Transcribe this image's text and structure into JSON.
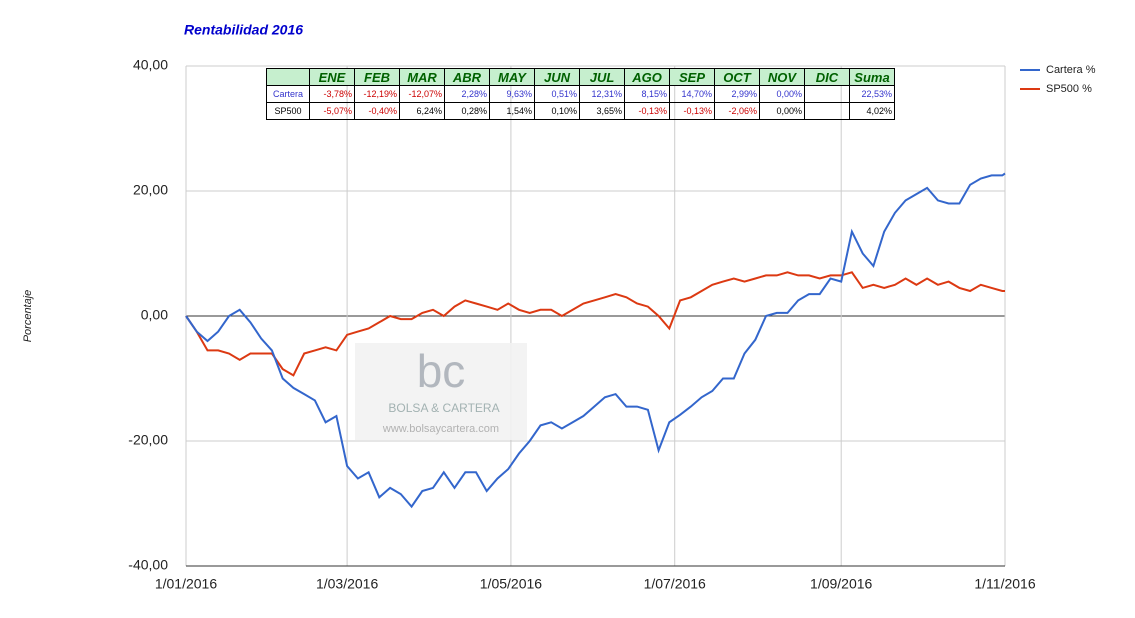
{
  "chart_data": {
    "type": "line",
    "title": "Rentabilidad 2016",
    "y_label": "Porcentaje",
    "x": [
      "2016-01-01",
      "2016-01-05",
      "2016-01-09",
      "2016-01-13",
      "2016-01-17",
      "2016-01-21",
      "2016-01-25",
      "2016-01-29",
      "2016-02-02",
      "2016-02-06",
      "2016-02-10",
      "2016-02-14",
      "2016-02-18",
      "2016-02-22",
      "2016-02-26",
      "2016-03-01",
      "2016-03-05",
      "2016-03-09",
      "2016-03-13",
      "2016-03-17",
      "2016-03-21",
      "2016-03-25",
      "2016-03-29",
      "2016-04-02",
      "2016-04-06",
      "2016-04-10",
      "2016-04-14",
      "2016-04-18",
      "2016-04-22",
      "2016-04-26",
      "2016-04-30",
      "2016-05-04",
      "2016-05-08",
      "2016-05-12",
      "2016-05-16",
      "2016-05-20",
      "2016-05-24",
      "2016-05-28",
      "2016-06-01",
      "2016-06-05",
      "2016-06-09",
      "2016-06-13",
      "2016-06-17",
      "2016-06-21",
      "2016-06-25",
      "2016-06-29",
      "2016-07-03",
      "2016-07-07",
      "2016-07-11",
      "2016-07-15",
      "2016-07-19",
      "2016-07-23",
      "2016-07-27",
      "2016-07-31",
      "2016-08-04",
      "2016-08-08",
      "2016-08-12",
      "2016-08-16",
      "2016-08-20",
      "2016-08-24",
      "2016-08-28",
      "2016-09-01",
      "2016-09-05",
      "2016-09-09",
      "2016-09-13",
      "2016-09-17",
      "2016-09-21",
      "2016-09-25",
      "2016-09-29",
      "2016-10-03",
      "2016-10-07",
      "2016-10-11",
      "2016-10-15",
      "2016-10-19",
      "2016-10-23",
      "2016-10-27",
      "2016-10-31",
      "2016-11-01"
    ],
    "series": [
      {
        "name": "Cartera %",
        "color": "#3366cc",
        "values": [
          0,
          -2.5,
          -4,
          -2.5,
          0,
          1,
          -1,
          -3.6,
          -5.5,
          -10,
          -11.5,
          -12.5,
          -13.5,
          -17,
          -16,
          -24,
          -26,
          -25,
          -29,
          -27.5,
          -28.5,
          -30.5,
          -28,
          -27.5,
          -25,
          -27.5,
          -25,
          -25,
          -28,
          -26,
          -24.5,
          -22,
          -20,
          -17.5,
          -17,
          -18,
          -17,
          -16,
          -14.5,
          -13,
          -12.5,
          -14.5,
          -14.5,
          -15,
          -21.5,
          -17,
          -15.8,
          -14.5,
          -13,
          -12,
          -10,
          -10,
          -6,
          -3.8,
          0,
          0.5,
          0.5,
          2.5,
          3.5,
          3.5,
          6,
          5.5,
          13.5,
          10,
          8,
          13.5,
          16.5,
          18.5,
          19.5,
          20.5,
          18.5,
          18,
          18,
          21,
          22,
          22.5,
          22.5,
          22.8
        ]
      },
      {
        "name": "SP500 %",
        "color": "#dc3912",
        "values": [
          0,
          -2.5,
          -5.5,
          -5.5,
          -6,
          -7,
          -6,
          -6,
          -6,
          -8.5,
          -9.5,
          -6,
          -5.5,
          -5,
          -5.5,
          -3,
          -2.5,
          -2,
          -1,
          0,
          -0.5,
          -0.5,
          0.5,
          1,
          0,
          1.5,
          2.5,
          2,
          1.5,
          1,
          2,
          1,
          0.5,
          1,
          1,
          0,
          1,
          2,
          2.5,
          3,
          3.5,
          3,
          2,
          1.5,
          0,
          -2,
          2.5,
          3,
          4,
          5,
          5.5,
          6,
          5.5,
          6,
          6.5,
          6.5,
          7,
          6.5,
          6.5,
          6,
          6.5,
          6.5,
          7,
          4.5,
          5,
          4.5,
          5,
          6,
          5,
          6,
          5,
          5.5,
          4.5,
          4,
          5,
          4.5,
          4,
          4
        ]
      }
    ],
    "xlim": [
      "2016-01-01",
      "2016-11-01"
    ],
    "xticks": [
      {
        "value": "2016-01-01",
        "label": "1/01/2016"
      },
      {
        "value": "2016-03-01",
        "label": "1/03/2016"
      },
      {
        "value": "2016-05-01",
        "label": "1/05/2016"
      },
      {
        "value": "2016-07-01",
        "label": "1/07/2016"
      },
      {
        "value": "2016-09-01",
        "label": "1/09/2016"
      },
      {
        "value": "2016-11-01",
        "label": "1/11/2016"
      }
    ],
    "ylim": [
      -40,
      40
    ],
    "yticks": [
      {
        "value": -40,
        "label": "-40,00"
      },
      {
        "value": -20,
        "label": "-20,00"
      },
      {
        "value": 0,
        "label": "0,00"
      },
      {
        "value": 20,
        "label": "20,00"
      },
      {
        "value": 40,
        "label": "40,00"
      }
    ],
    "grid": true,
    "legend": "right",
    "table": {
      "columns": [
        "ENE",
        "FEB",
        "MAR",
        "ABR",
        "MAY",
        "JUN",
        "JUL",
        "AGO",
        "SEP",
        "OCT",
        "NOV",
        "DIC",
        "Suma"
      ],
      "rows": [
        {
          "name": "Cartera",
          "color": "#3333cc",
          "cells": [
            "-3,78%",
            "-12,19%",
            "-12,07%",
            "2,28%",
            "9,63%",
            "0,51%",
            "12,31%",
            "8,15%",
            "14,70%",
            "2,99%",
            "0,00%",
            null,
            "22,53%"
          ]
        },
        {
          "name": "SP500",
          "color": "#000000",
          "cells": [
            "-5,07%",
            "-0,40%",
            "6,24%",
            "0,28%",
            "1,54%",
            "0,10%",
            "3,65%",
            "-0,13%",
            "-0,13%",
            "-2,06%",
            "0,00%",
            null,
            "4,02%"
          ]
        }
      ]
    },
    "watermark": {
      "logo": "bc",
      "brand": "BOLSA & CARTERA",
      "url": "www.bolsaycartera.com"
    }
  }
}
